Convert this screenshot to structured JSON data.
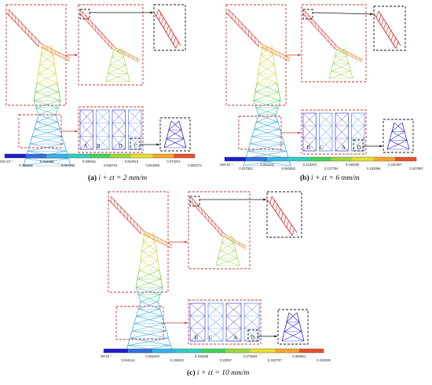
{
  "panels": [
    {
      "id": "a",
      "caption": {
        "label": "(a)",
        "expr": "i + εt = 2 mm/m"
      },
      "legend_ticks": [
        "0.225×10⁻⁷",
        "0.009153",
        "0.018305",
        "0.027458",
        "0.036611",
        "0.045763",
        "0.054916",
        "0.064068",
        "0.073221",
        "0.082374"
      ],
      "bay_letters": [
        "A",
        "B",
        "D",
        "C"
      ]
    },
    {
      "id": "b",
      "caption": {
        "label": "(b)",
        "expr": "i + εt = 6 mm/m"
      },
      "legend_ticks": [
        "0.129×10⁻⁷",
        "0.027551",
        "0.055102",
        "0.082652",
        "0.110203",
        "0.137754",
        "0.165305",
        "0.192856",
        "0.220407",
        "0.247957"
      ],
      "bay_letters": [
        "B",
        "C",
        "A",
        "D"
      ]
    },
    {
      "id": "c",
      "caption": {
        "label": "(c)",
        "expr": "i + εt = 10 mm/m"
      },
      "legend_ticks": [
        "0.408×10⁻⁷",
        "0.046114",
        "0.092229",
        "0.138342",
        "0.184456",
        "0.23057",
        "0.276683",
        "0.322797",
        "0.368911",
        "0.415025"
      ],
      "bay_letters": [
        "B",
        "C",
        "A",
        "D"
      ]
    }
  ],
  "legend_colors": [
    "#1e1ecc",
    "#2f6fe0",
    "#33b4e6",
    "#2ed0c0",
    "#3fd25a",
    "#9ed83a",
    "#e6e02c",
    "#f2a72a",
    "#e7502b"
  ],
  "frame_color": "#c83232",
  "arrow_color": "#111111"
}
